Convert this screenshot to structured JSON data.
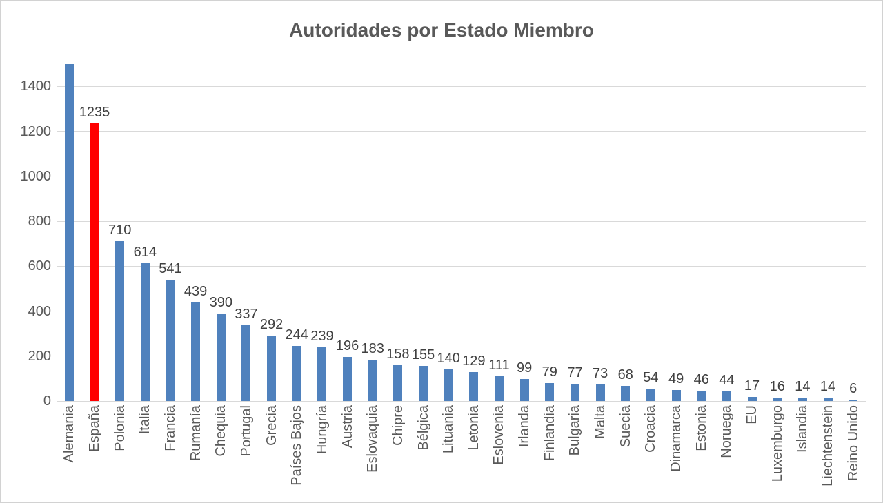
{
  "chart_data": {
    "type": "bar",
    "title": "Autoridades por Estado Miembro",
    "xlabel": "",
    "ylabel": "",
    "grid": true,
    "legend": "none",
    "y_ticks": [
      0,
      200,
      400,
      600,
      800,
      1000,
      1200,
      1400
    ],
    "ylim": [
      0,
      1505
    ],
    "categories": [
      "Alemania",
      "España",
      "Polonia",
      "Italia",
      "Francia",
      "Rumanía",
      "Chequia",
      "Portugal",
      "Grecia",
      "Países Bajos",
      "Hungría",
      "Austria",
      "Eslovaquia",
      "Chipre",
      "Bélgica",
      "Lituania",
      "Letonia",
      "Eslovenia",
      "Irlanda",
      "Finlandia",
      "Bulgaria",
      "Malta",
      "Suecia",
      "Croacia",
      "Dinamarca",
      "Estonia",
      "Noruega",
      "EU",
      "Luxemburgo",
      "Islandia",
      "Liechtenstein",
      "Reino Unido"
    ],
    "values": [
      1500,
      1235,
      710,
      614,
      541,
      439,
      390,
      337,
      292,
      244,
      239,
      196,
      183,
      158,
      155,
      140,
      129,
      111,
      99,
      79,
      77,
      73,
      68,
      54,
      49,
      46,
      44,
      17,
      16,
      14,
      14,
      6
    ],
    "data_labels": [
      null,
      "1235",
      "710",
      "614",
      "541",
      "439",
      "390",
      "337",
      "292",
      "244",
      "239",
      "196",
      "183",
      "158",
      "155",
      "140",
      "129",
      "111",
      "99",
      "79",
      "77",
      "73",
      "68",
      "54",
      "49",
      "46",
      "44",
      "17",
      "16",
      "14",
      "14",
      "6"
    ],
    "highlighted_category": "España",
    "colors": {
      "bar": "#4F81BD",
      "highlight": "#FF0000",
      "gridline": "#D9D9D9",
      "axis_text": "#595959",
      "data_label_text": "#404040",
      "title_text": "#595959"
    }
  }
}
